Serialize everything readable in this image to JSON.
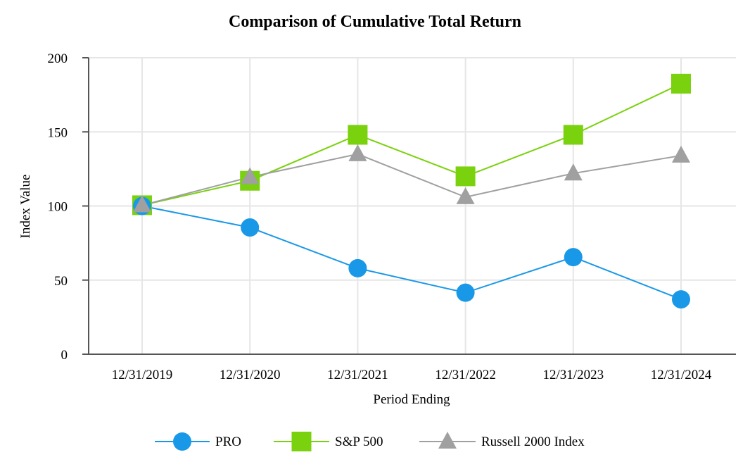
{
  "chart_data": {
    "type": "line",
    "title": "Comparison of Cumulative Total Return",
    "xlabel": "Period Ending",
    "ylabel": "Index Value",
    "categories": [
      "12/31/2019",
      "12/31/2020",
      "12/31/2021",
      "12/31/2022",
      "12/31/2023",
      "12/31/2024"
    ],
    "ylim": [
      0,
      200
    ],
    "yticks": [
      0,
      50,
      100,
      150,
      200
    ],
    "grid": true,
    "legend_position": "bottom-center",
    "series": [
      {
        "name": "PRO",
        "marker": "circle",
        "color": "#1a98e8",
        "values": [
          100,
          85.5,
          58,
          41.5,
          65.5,
          37
        ]
      },
      {
        "name": "S&P 500",
        "marker": "square",
        "color": "#7ad10d",
        "values": [
          100.5,
          117,
          148,
          120,
          148,
          182.5
        ]
      },
      {
        "name": "Russell 2000 Index",
        "marker": "triangle",
        "color": "#a0a0a0",
        "values": [
          100.5,
          119.5,
          135,
          106,
          122,
          134
        ]
      }
    ]
  }
}
